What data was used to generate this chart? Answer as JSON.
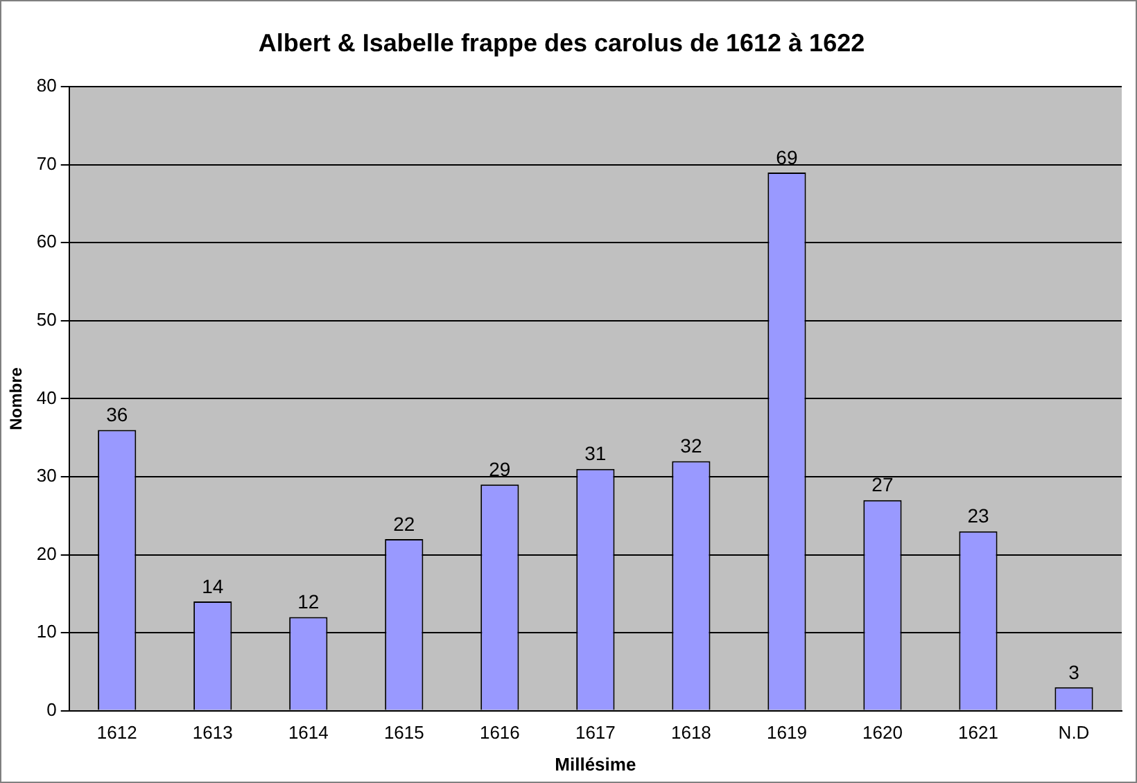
{
  "chart_data": {
    "type": "bar",
    "title": "Albert & Isabelle frappe des carolus de 1612 à 1622",
    "xlabel": "Millésime",
    "ylabel": "Nombre",
    "categories": [
      "1612",
      "1613",
      "1614",
      "1615",
      "1616",
      "1617",
      "1618",
      "1619",
      "1620",
      "1621",
      "N.D"
    ],
    "values": [
      36,
      14,
      12,
      22,
      29,
      31,
      32,
      69,
      27,
      23,
      3
    ],
    "color": "#9999ff",
    "ylim": [
      0,
      80
    ],
    "yticks": [
      0,
      10,
      20,
      30,
      40,
      50,
      60,
      70,
      80
    ],
    "grid": "y",
    "data_labels": true,
    "legend": false
  }
}
